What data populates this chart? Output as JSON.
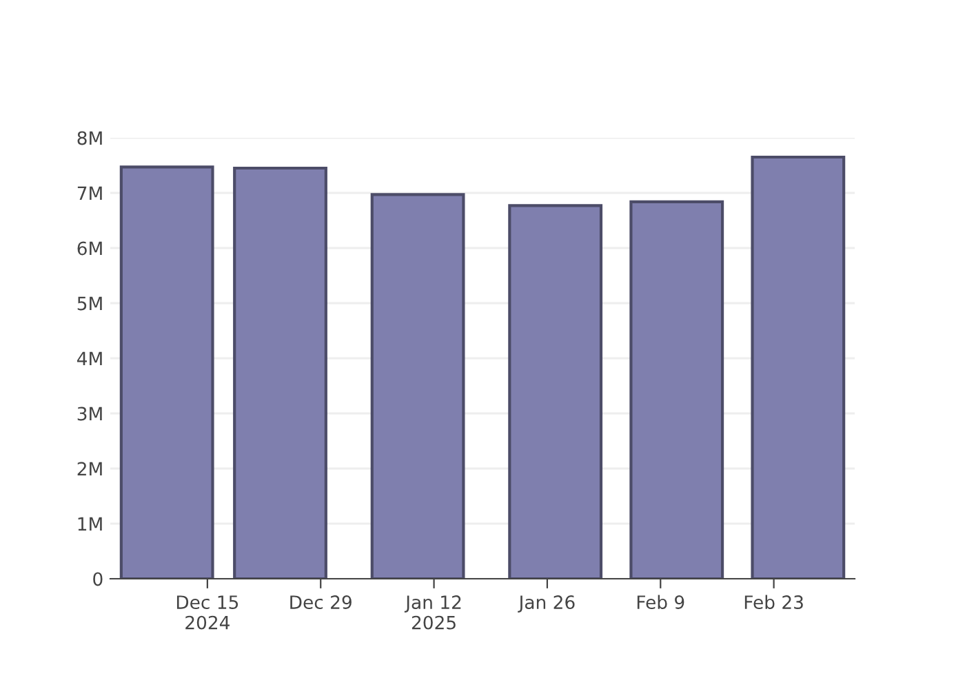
{
  "chart_data": {
    "type": "bar",
    "x": [
      "2024-12-10",
      "2024-12-24",
      "2025-01-10",
      "2025-01-27",
      "2025-02-11",
      "2025-02-26"
    ],
    "values": [
      7470000,
      7450000,
      6970000,
      6770000,
      6840000,
      7650000
    ],
    "color": "#7f7fae",
    "xlim": [
      "2024-12-03",
      "2025-03-05"
    ],
    "xticks": [
      {
        "value": "2024-12-15",
        "label": "Dec 15\n2024"
      },
      {
        "value": "2024-12-29",
        "label": "Dec 29"
      },
      {
        "value": "2025-01-12",
        "label": "Jan 12\n2025"
      },
      {
        "value": "2025-01-26",
        "label": "Jan 26"
      },
      {
        "value": "2025-02-09",
        "label": "Feb 9"
      },
      {
        "value": "2025-02-23",
        "label": "Feb 23"
      }
    ],
    "ylim": [
      0,
      8000000
    ],
    "yticks": [
      0,
      {
        "value": 1000000,
        "label": "1M"
      },
      {
        "value": 2000000,
        "label": "2M"
      },
      {
        "value": 3000000,
        "label": "3M"
      },
      {
        "value": 4000000,
        "label": "4M"
      },
      {
        "value": 5000000,
        "label": "5M"
      },
      {
        "value": 6000000,
        "label": "6M"
      },
      {
        "value": 7000000,
        "label": "7M"
      },
      {
        "value": 8000000,
        "label": "8M"
      }
    ],
    "grid": "y"
  }
}
